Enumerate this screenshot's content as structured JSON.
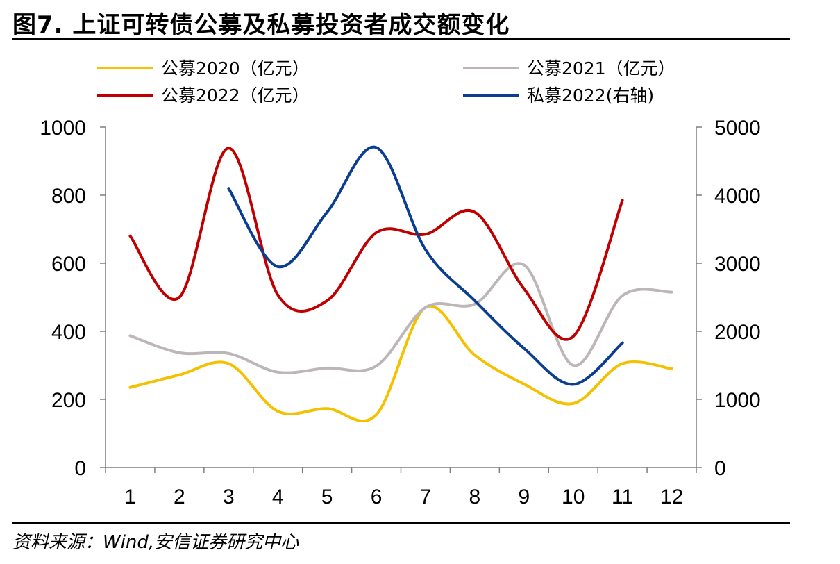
{
  "figure": {
    "title": "图7. 上证可转债公募及私募投资者成交额变化",
    "source": "资料来源：Wind,安信证券研究中心"
  },
  "chart_data": {
    "type": "line",
    "x": [
      1,
      2,
      3,
      4,
      5,
      6,
      7,
      8,
      9,
      10,
      11,
      12
    ],
    "xticks": [
      "1",
      "2",
      "3",
      "4",
      "5",
      "6",
      "7",
      "8",
      "9",
      "10",
      "11",
      "12"
    ],
    "ylim": [
      0,
      1000
    ],
    "yticks": [
      "0",
      "200",
      "400",
      "600",
      "800",
      "1000"
    ],
    "y2lim": [
      0,
      5000
    ],
    "y2ticks": [
      "0",
      "1000",
      "2000",
      "3000",
      "4000",
      "5000"
    ],
    "legend_position": "top",
    "series": [
      {
        "name": "公募2020（亿元）",
        "color": "#F5C000",
        "axis": "left",
        "values": [
          235,
          272,
          305,
          165,
          173,
          155,
          470,
          330,
          245,
          188,
          305,
          290
        ]
      },
      {
        "name": "公募2021（亿元）",
        "color": "#BDB6B6",
        "axis": "left",
        "values": [
          387,
          337,
          335,
          280,
          292,
          298,
          470,
          480,
          595,
          300,
          505,
          515
        ]
      },
      {
        "name": "公募2022（亿元）",
        "color": "#C00000",
        "axis": "left",
        "values": [
          680,
          500,
          938,
          507,
          490,
          690,
          685,
          750,
          525,
          385,
          785,
          null
        ]
      },
      {
        "name": "私募2022(右轴)",
        "color": "#0B3D91",
        "axis": "right",
        "values": [
          null,
          null,
          4100,
          2950,
          3750,
          4700,
          3200,
          2450,
          1750,
          1220,
          1830,
          null
        ]
      }
    ]
  }
}
